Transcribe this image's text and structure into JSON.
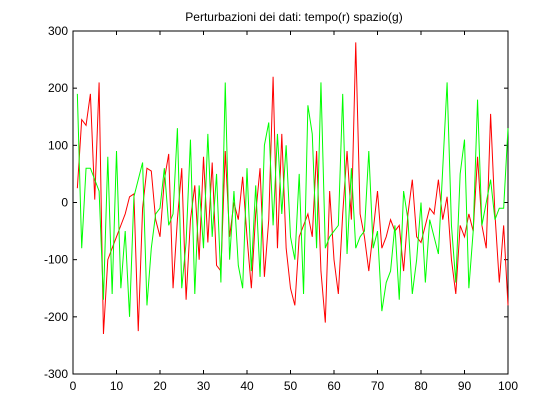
{
  "chart_data": {
    "type": "line",
    "title": "Perturbazioni dei dati: tempo(r) spazio(g)",
    "xlabel": "",
    "ylabel": "",
    "xlim": [
      0,
      100
    ],
    "ylim": [
      -300,
      300
    ],
    "xticks": [
      0,
      10,
      20,
      30,
      40,
      50,
      60,
      70,
      80,
      90,
      100
    ],
    "yticks": [
      -300,
      -200,
      -100,
      0,
      100,
      200,
      300
    ],
    "grid": false,
    "legend": "none",
    "series": [
      {
        "color": "#ff0000",
        "x": [
          1,
          2,
          3,
          4,
          5,
          6,
          7,
          8,
          9,
          10,
          11,
          12,
          13,
          14,
          15,
          16,
          17,
          18,
          19,
          20,
          21,
          22,
          23,
          24,
          25,
          26,
          27,
          28,
          29,
          30,
          31,
          32,
          33,
          34,
          35,
          36,
          37,
          38,
          39,
          40,
          41,
          42,
          43,
          44,
          45,
          46,
          47,
          48,
          49,
          50,
          51,
          52,
          53,
          54,
          55,
          56,
          57,
          58,
          59,
          60,
          61,
          62,
          63,
          64,
          65,
          66,
          67,
          68,
          69,
          70,
          71,
          72,
          73,
          74,
          75,
          76,
          77,
          78,
          79,
          80,
          81,
          82,
          83,
          84,
          85,
          86,
          87,
          88,
          89,
          90,
          91,
          92,
          93,
          94,
          95,
          96,
          97,
          98,
          99,
          100
        ],
        "values": [
          25,
          145,
          135,
          190,
          5,
          210,
          -230,
          -100,
          -80,
          -60,
          -40,
          -20,
          10,
          15,
          -225,
          -10,
          60,
          55,
          -30,
          -60,
          40,
          85,
          -150,
          -30,
          60,
          -170,
          -30,
          30,
          -100,
          80,
          -70,
          70,
          -110,
          -120,
          90,
          -60,
          0,
          -30,
          45,
          -60,
          -150,
          -20,
          60,
          -130,
          -30,
          220,
          -80,
          120,
          -80,
          -150,
          -180,
          -60,
          -40,
          -20,
          -60,
          90,
          -120,
          -210,
          20,
          -100,
          -160,
          -20,
          90,
          -30,
          280,
          -20,
          -60,
          -120,
          -50,
          20,
          -80,
          -60,
          -30,
          -50,
          -40,
          -120,
          -20,
          40,
          -60,
          -70,
          -40,
          -10,
          -20,
          40,
          -30,
          10,
          -100,
          -160,
          -40,
          -60,
          -20,
          -50,
          80,
          -40,
          -80,
          155,
          -20,
          -140,
          -40,
          -180
        ]
      },
      {
        "color": "#00ff00",
        "x": [
          1,
          2,
          3,
          4,
          5,
          6,
          7,
          8,
          9,
          10,
          11,
          12,
          13,
          14,
          15,
          16,
          17,
          18,
          19,
          20,
          21,
          22,
          23,
          24,
          25,
          26,
          27,
          28,
          29,
          30,
          31,
          32,
          33,
          34,
          35,
          36,
          37,
          38,
          39,
          40,
          41,
          42,
          43,
          44,
          45,
          46,
          47,
          48,
          49,
          50,
          51,
          52,
          53,
          54,
          55,
          56,
          57,
          58,
          59,
          60,
          61,
          62,
          63,
          64,
          65,
          66,
          67,
          68,
          69,
          70,
          71,
          72,
          73,
          74,
          75,
          76,
          77,
          78,
          79,
          80,
          81,
          82,
          83,
          84,
          85,
          86,
          87,
          88,
          89,
          90,
          91,
          92,
          93,
          94,
          95,
          96,
          97,
          98,
          99,
          100
        ],
        "values": [
          190,
          -80,
          60,
          60,
          40,
          20,
          -170,
          80,
          -160,
          90,
          -150,
          -50,
          -200,
          10,
          40,
          70,
          -180,
          -80,
          -20,
          -10,
          60,
          -40,
          -20,
          130,
          -150,
          -70,
          110,
          -160,
          30,
          -80,
          120,
          -60,
          50,
          -140,
          210,
          -100,
          20,
          -110,
          -150,
          60,
          -120,
          30,
          -130,
          100,
          140,
          -40,
          120,
          -20,
          100,
          -60,
          -100,
          50,
          -160,
          170,
          120,
          -80,
          210,
          -80,
          -60,
          -50,
          -40,
          190,
          -90,
          60,
          -80,
          -60,
          -50,
          90,
          -80,
          -50,
          -190,
          -140,
          -120,
          -40,
          -170,
          20,
          -30,
          -160,
          -100,
          0,
          -140,
          -30,
          -60,
          -90,
          60,
          210,
          -40,
          -140,
          50,
          110,
          -150,
          -50,
          180,
          -40,
          0,
          40,
          -30,
          -10,
          -10,
          130
        ]
      }
    ]
  }
}
